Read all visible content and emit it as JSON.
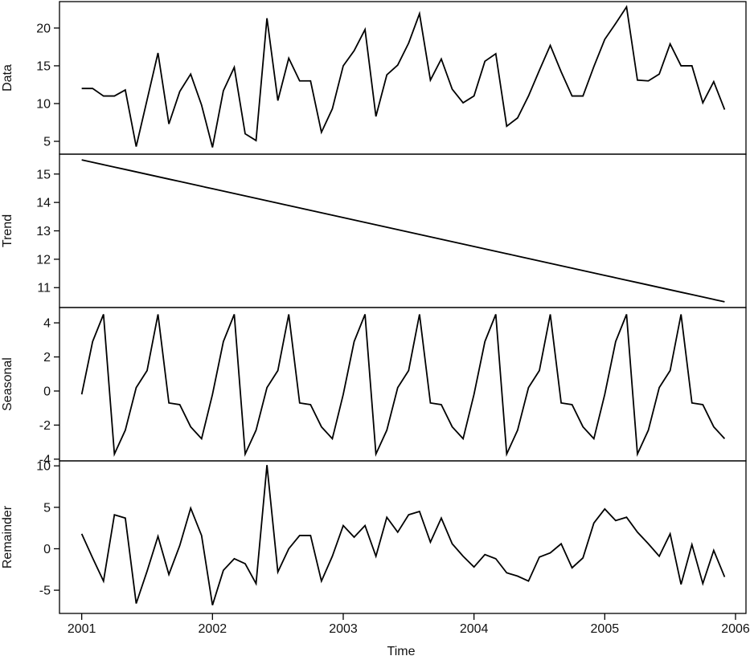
{
  "chart_data": {
    "type": "line",
    "title": "",
    "xlabel": "Time",
    "x_ticks": [
      "2001",
      "2002",
      "2003",
      "2004",
      "2005",
      "2006"
    ],
    "x_start": 2001.0,
    "x_step": 0.083333,
    "x_range": [
      2000.83,
      2006.08
    ],
    "line_color": "#000000",
    "panels": [
      {
        "name": "data",
        "ylabel": "Data",
        "ylim": [
          3.3,
          23.5
        ],
        "ticks": [
          {
            "value": 5,
            "label": "5"
          },
          {
            "value": 10,
            "label": "10"
          },
          {
            "value": 15,
            "label": "15"
          },
          {
            "value": 20,
            "label": "20"
          }
        ],
        "values": [
          12.0,
          12.0,
          11.0,
          11.0,
          11.8,
          4.3,
          10.5,
          16.7,
          7.3,
          11.6,
          13.9,
          9.8,
          4.2,
          11.7,
          14.8,
          6.0,
          5.1,
          21.3,
          10.4,
          16.0,
          13.0,
          13.0,
          6.2,
          9.3,
          15.0,
          17.0,
          19.8,
          8.3,
          13.8,
          15.1,
          18.0,
          21.9,
          13.1,
          15.9,
          11.9,
          10.1,
          11.0,
          15.6,
          16.6,
          7.0,
          8.1,
          11.0,
          14.4,
          17.7,
          14.2,
          11.0,
          11.0,
          14.9,
          18.5,
          20.6,
          22.8,
          13.1,
          13.0,
          13.9,
          17.9,
          15.0,
          15.0,
          10.1,
          12.9,
          9.2
        ]
      },
      {
        "name": "trend",
        "ylabel": "Trend",
        "ylim": [
          10.3,
          15.7
        ],
        "ticks": [
          {
            "value": 11,
            "label": "11"
          },
          {
            "value": 12,
            "label": "12"
          },
          {
            "value": 13,
            "label": "13"
          },
          {
            "value": 14,
            "label": "14"
          },
          {
            "value": 15,
            "label": "15"
          }
        ],
        "values": [
          15.5,
          15.4153,
          15.3305,
          15.2458,
          15.161,
          15.0763,
          14.9915,
          14.9068,
          14.822,
          14.7373,
          14.6525,
          14.5678,
          14.483,
          14.3983,
          14.3136,
          14.2288,
          14.1441,
          14.0593,
          13.9746,
          13.8898,
          13.8051,
          13.7203,
          13.6356,
          13.5508,
          13.4661,
          13.3814,
          13.2966,
          13.2119,
          13.1271,
          13.0424,
          12.9576,
          12.8729,
          12.7881,
          12.7034,
          12.6186,
          12.5339,
          12.4492,
          12.3644,
          12.2797,
          12.1949,
          12.1102,
          12.0254,
          11.9407,
          11.8559,
          11.7712,
          11.6864,
          11.6017,
          11.5169,
          11.4322,
          11.3475,
          11.2627,
          11.178,
          11.0932,
          11.0085,
          10.9237,
          10.839,
          10.7542,
          10.6695,
          10.5847,
          10.5
        ]
      },
      {
        "name": "seasonal",
        "ylabel": "Seasonal",
        "ylim": [
          -4.1,
          4.9
        ],
        "ticks": [
          {
            "value": -4,
            "label": "-4"
          },
          {
            "value": -2,
            "label": "-2"
          },
          {
            "value": 0,
            "label": "0"
          },
          {
            "value": 2,
            "label": "2"
          },
          {
            "value": 4,
            "label": "4"
          }
        ],
        "values": [
          -0.2,
          2.9,
          4.5,
          -3.7,
          -2.3,
          0.2,
          1.2,
          4.5,
          -0.7,
          -0.8,
          -2.1,
          -2.8,
          -0.2,
          2.9,
          4.5,
          -3.7,
          -2.3,
          0.2,
          1.2,
          4.5,
          -0.7,
          -0.8,
          -2.1,
          -2.8,
          -0.2,
          2.9,
          4.5,
          -3.7,
          -2.3,
          0.2,
          1.2,
          4.5,
          -0.7,
          -0.8,
          -2.1,
          -2.8,
          -0.2,
          2.9,
          4.5,
          -3.7,
          -2.3,
          0.2,
          1.2,
          4.5,
          -0.7,
          -0.8,
          -2.1,
          -2.8,
          -0.2,
          2.9,
          4.5,
          -3.7,
          -2.3,
          0.2,
          1.2,
          4.5,
          -0.7,
          -0.8,
          -2.1,
          -2.8
        ]
      },
      {
        "name": "remainder",
        "ylabel": "Remainder",
        "ylim": [
          -7.8,
          10.6
        ],
        "ticks": [
          {
            "value": -5,
            "label": "-5"
          },
          {
            "value": 0,
            "label": "0"
          },
          {
            "value": 5,
            "label": "5"
          },
          {
            "value": 10,
            "label": "10"
          }
        ],
        "values": [
          1.8,
          -1.1,
          -3.9,
          4.1,
          3.7,
          -6.6,
          -2.7,
          1.5,
          -3.1,
          0.4,
          4.9,
          1.6,
          -6.8,
          -2.6,
          -1.2,
          -1.8,
          -4.2,
          10.1,
          -2.8,
          0.0,
          1.6,
          1.6,
          -3.9,
          -0.9,
          2.8,
          1.4,
          2.8,
          -0.9,
          3.8,
          2.0,
          4.1,
          4.5,
          0.8,
          3.7,
          0.6,
          -0.9,
          -2.2,
          -0.7,
          -1.2,
          -2.9,
          -3.3,
          -3.9,
          -1.0,
          -0.5,
          0.6,
          -2.3,
          -1.1,
          3.1,
          4.8,
          3.4,
          3.8,
          2.0,
          0.6,
          -0.9,
          1.8,
          -4.3,
          0.5,
          -4.2,
          -0.2,
          -3.4
        ]
      }
    ]
  }
}
